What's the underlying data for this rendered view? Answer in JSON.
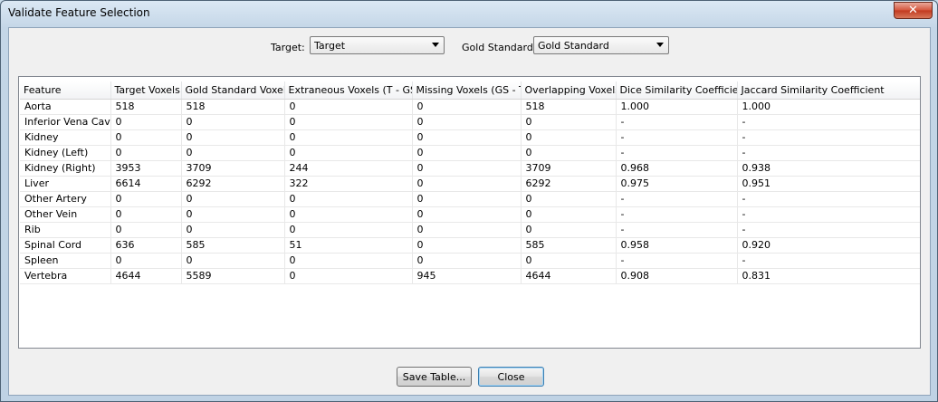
{
  "window": {
    "title": "Validate Feature Selection",
    "close_glyph": "✕"
  },
  "selectors": {
    "target_label": "Target:",
    "target_value": "Target",
    "gold_label": "Gold Standard:",
    "gold_value": "Gold Standard"
  },
  "table": {
    "columns": [
      "Feature",
      "Target Voxels",
      "Gold Standard Voxels",
      "Extraneous Voxels (T - GS)",
      "Missing Voxels (GS - T)",
      "Overlapping Voxels",
      "Dice Similarity Coefficient",
      "Jaccard Similarity Coefficient"
    ],
    "rows": [
      [
        "Aorta",
        "518",
        "518",
        "0",
        "0",
        "518",
        "1.000",
        "1.000"
      ],
      [
        "Inferior Vena Cava",
        "0",
        "0",
        "0",
        "0",
        "0",
        "-",
        "-"
      ],
      [
        "Kidney",
        "0",
        "0",
        "0",
        "0",
        "0",
        "-",
        "-"
      ],
      [
        "Kidney (Left)",
        "0",
        "0",
        "0",
        "0",
        "0",
        "-",
        "-"
      ],
      [
        "Kidney (Right)",
        "3953",
        "3709",
        "244",
        "0",
        "3709",
        "0.968",
        "0.938"
      ],
      [
        "Liver",
        "6614",
        "6292",
        "322",
        "0",
        "6292",
        "0.975",
        "0.951"
      ],
      [
        "Other Artery",
        "0",
        "0",
        "0",
        "0",
        "0",
        "-",
        "-"
      ],
      [
        "Other Vein",
        "0",
        "0",
        "0",
        "0",
        "0",
        "-",
        "-"
      ],
      [
        "Rib",
        "0",
        "0",
        "0",
        "0",
        "0",
        "-",
        "-"
      ],
      [
        "Spinal Cord",
        "636",
        "585",
        "51",
        "0",
        "585",
        "0.958",
        "0.920"
      ],
      [
        "Spleen",
        "0",
        "0",
        "0",
        "0",
        "0",
        "-",
        "-"
      ],
      [
        "Vertebra",
        "4644",
        "5589",
        "0",
        "945",
        "4644",
        "0.908",
        "0.831"
      ]
    ]
  },
  "buttons": {
    "save": "Save Table...",
    "close": "Close"
  }
}
